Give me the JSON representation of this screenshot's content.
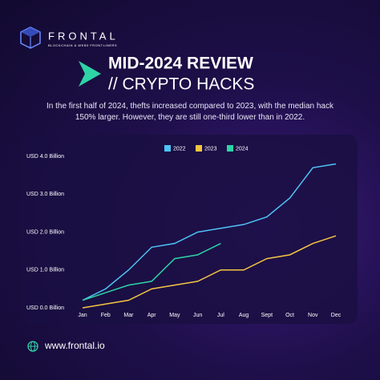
{
  "brand": {
    "name": "FRONTAL",
    "tagline": "BLOCKCHAIN & WEB3 FRONTLINERS"
  },
  "headline": {
    "line1": "MID-2024 REVIEW",
    "line2": "// CRYPTO HACKS"
  },
  "description": "In the first half of 2024, thefts increased compared to 2023, with the median hack 150% larger. However, they are still one-third lower than in 2022.",
  "footer": {
    "url": "www.frontal.io"
  },
  "chart_data": {
    "type": "line",
    "categories": [
      "Jan",
      "Feb",
      "Mar",
      "Apr",
      "May",
      "Jun",
      "Jul",
      "Aug",
      "Sept",
      "Oct",
      "Nov",
      "Dec"
    ],
    "series": [
      {
        "name": "2022",
        "color": "#4fc3f7",
        "values": [
          0.2,
          0.5,
          1.0,
          1.6,
          1.7,
          2.0,
          2.1,
          2.2,
          2.4,
          2.9,
          3.7,
          3.8
        ]
      },
      {
        "name": "2023",
        "color": "#f5c542",
        "values": [
          0.0,
          0.1,
          0.2,
          0.5,
          0.6,
          0.7,
          1.0,
          1.0,
          1.3,
          1.4,
          1.7,
          1.9
        ]
      },
      {
        "name": "2024",
        "color": "#2ed3a5",
        "values": [
          0.2,
          0.4,
          0.6,
          0.7,
          1.3,
          1.4,
          1.7,
          null,
          null,
          null,
          null,
          null
        ]
      }
    ],
    "ylim": [
      0,
      4
    ],
    "yticks": [
      {
        "value": 0,
        "label": "USD 0.0 Billion"
      },
      {
        "value": 1,
        "label": "USD 1.0 Billion"
      },
      {
        "value": 2,
        "label": "USD 2.0 Billion"
      },
      {
        "value": 3,
        "label": "USD 3.0 Billion"
      },
      {
        "value": 4,
        "label": "USD 4.0 Billion"
      }
    ],
    "legend": "top"
  }
}
